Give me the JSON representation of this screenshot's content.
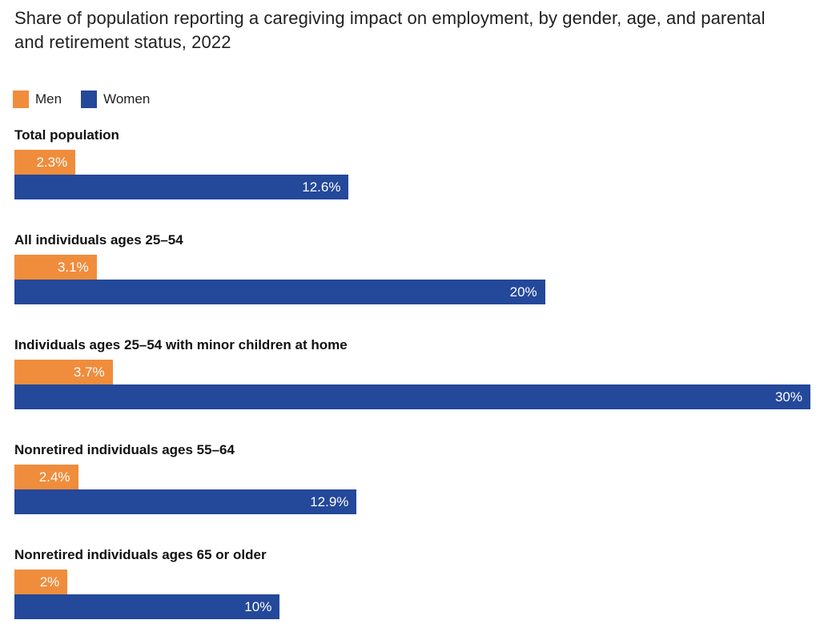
{
  "title": "Share of population reporting a caregiving impact on employment, by gender, age, and parental and retirement status, 2022",
  "colors": {
    "men": "#EF8D3C",
    "women": "#24489A",
    "title_text": "#212121",
    "label_text": "#111111",
    "value_text": "#ffffff",
    "background": "#ffffff"
  },
  "legend": {
    "position": "top-left",
    "items": [
      {
        "label": "Men",
        "color": "#EF8D3C"
      },
      {
        "label": "Women",
        "color": "#24489A"
      }
    ]
  },
  "chart_data": {
    "type": "bar",
    "orientation": "horizontal",
    "title": "Share of population reporting a caregiving impact on employment, by gender, age, and parental and retirement status, 2022",
    "categories": [
      "Total population",
      "All individuals ages 25–54",
      "Individuals ages 25–54 with minor children at home",
      "Nonretired individuals ages 55–64",
      "Nonretired individuals ages 65 or older"
    ],
    "series": [
      {
        "name": "Men",
        "color": "#EF8D3C",
        "values": [
          2.3,
          3.1,
          3.7,
          2.4,
          2
        ],
        "labels": [
          "2.3%",
          "3.1%",
          "3.7%",
          "2.4%",
          "2%"
        ]
      },
      {
        "name": "Women",
        "color": "#24489A",
        "values": [
          12.6,
          20,
          30,
          12.9,
          10
        ],
        "labels": [
          "12.6%",
          "20%",
          "30%",
          "12.9%",
          "10%"
        ]
      }
    ],
    "xlim": [
      0,
      30
    ],
    "xlabel": "",
    "ylabel": "",
    "grid": false,
    "axis_ticks_visible": false,
    "value_labels": "inside-end",
    "legend_position": "top-left"
  }
}
